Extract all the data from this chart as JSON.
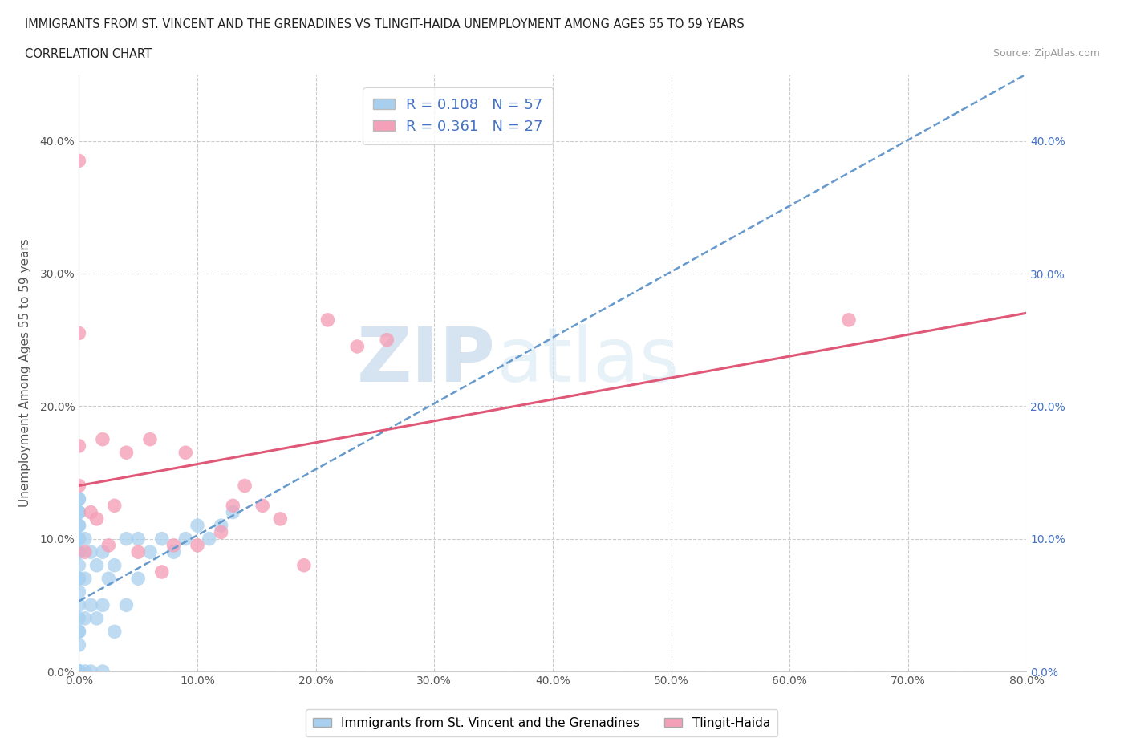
{
  "title_line1": "IMMIGRANTS FROM ST. VINCENT AND THE GRENADINES VS TLINGIT-HAIDA UNEMPLOYMENT AMONG AGES 55 TO 59 YEARS",
  "title_line2": "CORRELATION CHART",
  "source_text": "Source: ZipAtlas.com",
  "ylabel": "Unemployment Among Ages 55 to 59 years",
  "xlim": [
    0.0,
    0.8
  ],
  "ylim": [
    0.0,
    0.45
  ],
  "xticks": [
    0.0,
    0.1,
    0.2,
    0.3,
    0.4,
    0.5,
    0.6,
    0.7,
    0.8
  ],
  "xticklabels": [
    "0.0%",
    "10.0%",
    "20.0%",
    "30.0%",
    "40.0%",
    "50.0%",
    "60.0%",
    "70.0%",
    "80.0%"
  ],
  "yticks": [
    0.0,
    0.1,
    0.2,
    0.3,
    0.4
  ],
  "yticklabels": [
    "0.0%",
    "10.0%",
    "20.0%",
    "30.0%",
    "40.0%"
  ],
  "blue_R": 0.108,
  "blue_N": 57,
  "pink_R": 0.361,
  "pink_N": 27,
  "blue_color": "#a8d0ee",
  "pink_color": "#f4a0b8",
  "blue_line_color": "#6699cc",
  "pink_line_color": "#e05878",
  "blue_scatter_x": [
    0.0,
    0.0,
    0.0,
    0.0,
    0.0,
    0.0,
    0.0,
    0.0,
    0.0,
    0.0,
    0.0,
    0.0,
    0.0,
    0.0,
    0.0,
    0.0,
    0.0,
    0.0,
    0.0,
    0.0,
    0.0,
    0.0,
    0.0,
    0.0,
    0.0,
    0.0,
    0.0,
    0.0,
    0.0,
    0.0,
    0.005,
    0.005,
    0.005,
    0.005,
    0.01,
    0.01,
    0.01,
    0.015,
    0.015,
    0.02,
    0.02,
    0.02,
    0.025,
    0.03,
    0.03,
    0.04,
    0.04,
    0.05,
    0.05,
    0.06,
    0.07,
    0.08,
    0.09,
    0.1,
    0.11,
    0.12,
    0.13
  ],
  "blue_scatter_y": [
    0.0,
    0.0,
    0.0,
    0.0,
    0.0,
    0.0,
    0.0,
    0.0,
    0.0,
    0.0,
    0.02,
    0.03,
    0.03,
    0.04,
    0.05,
    0.06,
    0.07,
    0.07,
    0.08,
    0.09,
    0.09,
    0.1,
    0.1,
    0.11,
    0.11,
    0.12,
    0.12,
    0.12,
    0.13,
    0.13,
    0.0,
    0.04,
    0.07,
    0.1,
    0.0,
    0.05,
    0.09,
    0.04,
    0.08,
    0.0,
    0.05,
    0.09,
    0.07,
    0.03,
    0.08,
    0.05,
    0.1,
    0.07,
    0.1,
    0.09,
    0.1,
    0.09,
    0.1,
    0.11,
    0.1,
    0.11,
    0.12
  ],
  "pink_scatter_x": [
    0.0,
    0.0,
    0.0,
    0.0,
    0.005,
    0.01,
    0.015,
    0.02,
    0.025,
    0.03,
    0.04,
    0.05,
    0.06,
    0.07,
    0.08,
    0.09,
    0.1,
    0.12,
    0.13,
    0.14,
    0.155,
    0.17,
    0.19,
    0.21,
    0.235,
    0.26,
    0.65
  ],
  "pink_scatter_y": [
    0.385,
    0.255,
    0.14,
    0.17,
    0.09,
    0.12,
    0.115,
    0.175,
    0.095,
    0.125,
    0.165,
    0.09,
    0.175,
    0.075,
    0.095,
    0.165,
    0.095,
    0.105,
    0.125,
    0.14,
    0.125,
    0.115,
    0.08,
    0.265,
    0.245,
    0.25,
    0.265
  ],
  "watermark_zip": "ZIP",
  "watermark_atlas": "atlas",
  "legend_label_blue": "Immigrants from St. Vincent and the Grenadines",
  "legend_label_pink": "Tlingit-Haida",
  "background_color": "#ffffff",
  "grid_color": "#cccccc",
  "right_tick_color": "#4472c4"
}
